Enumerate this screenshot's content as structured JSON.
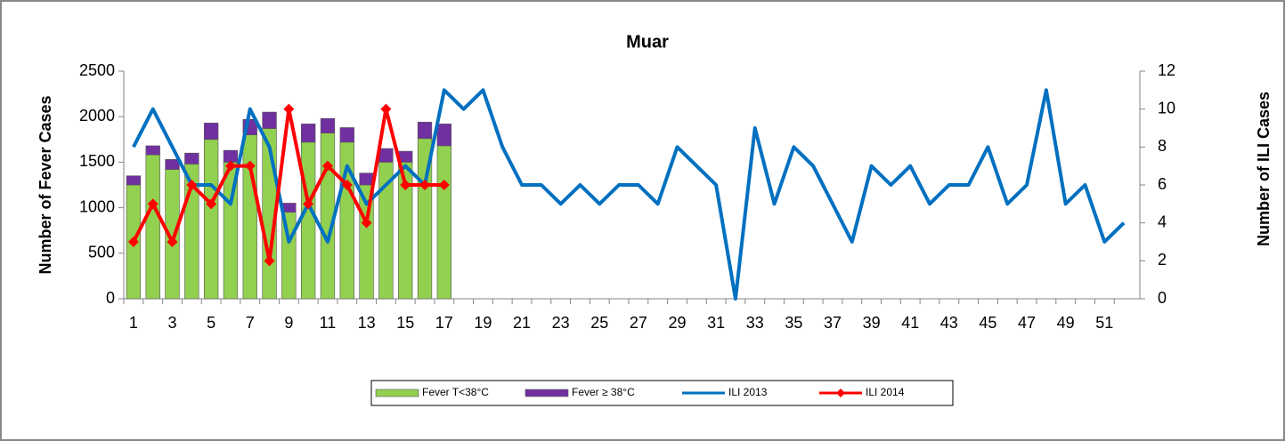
{
  "chart_data": {
    "type": "bar",
    "title": "Muar",
    "ylabel": "Number of Fever Cases",
    "y2label": "Number of ILI Cases",
    "categories": [
      1,
      null,
      3,
      null,
      5,
      null,
      7,
      null,
      9,
      null,
      11,
      null,
      13,
      null,
      15,
      null,
      17,
      null,
      19,
      null,
      21,
      null,
      23,
      null,
      25,
      null,
      27,
      null,
      29,
      null,
      31,
      null,
      33,
      null,
      35,
      null,
      37,
      null,
      39,
      null,
      41,
      null,
      43,
      null,
      45,
      null,
      47,
      null,
      49,
      null,
      51,
      null
    ],
    "ylim": [
      0,
      2500
    ],
    "yticks": [
      0,
      500,
      1000,
      1500,
      2000,
      2500
    ],
    "y2lim": [
      0,
      12
    ],
    "y2ticks": [
      0,
      2,
      4,
      6,
      8,
      10,
      12
    ],
    "legend": "bottom",
    "series": [
      {
        "name": "Fever T<38°C",
        "color": "#92d050",
        "type": "bar",
        "values": [
          1250,
          1580,
          1420,
          1480,
          1750,
          1500,
          1800,
          1870,
          950,
          1720,
          1820,
          1720,
          1250,
          1500,
          1500,
          1760,
          1680,
          null,
          null,
          null,
          null,
          null,
          null,
          null,
          null,
          null,
          null,
          null,
          null,
          null,
          null,
          null,
          null,
          null,
          null,
          null,
          null,
          null,
          null,
          null,
          null,
          null,
          null,
          null,
          null,
          null,
          null,
          null,
          null,
          null,
          null,
          null
        ]
      },
      {
        "name": "Fever ≥ 38°C",
        "color": "#7030a0",
        "type": "bar",
        "values": [
          100,
          100,
          110,
          120,
          180,
          130,
          170,
          180,
          100,
          200,
          160,
          160,
          130,
          150,
          120,
          180,
          240,
          null,
          null,
          null,
          null,
          null,
          null,
          null,
          null,
          null,
          null,
          null,
          null,
          null,
          null,
          null,
          null,
          null,
          null,
          null,
          null,
          null,
          null,
          null,
          null,
          null,
          null,
          null,
          null,
          null,
          null,
          null,
          null,
          null,
          null,
          null
        ]
      },
      {
        "name": "ILI 2013",
        "color": "#0070c0",
        "type": "line",
        "axis": "y2",
        "values": [
          8,
          10,
          8,
          6,
          6,
          5,
          10,
          8,
          3,
          5,
          3,
          7,
          5,
          6,
          7,
          6,
          11,
          10,
          11,
          8,
          6,
          6,
          5,
          6,
          5,
          6,
          6,
          5,
          8,
          7,
          6,
          0,
          9,
          5,
          8,
          7,
          5,
          3,
          7,
          6,
          7,
          5,
          6,
          6,
          8,
          5,
          6,
          11,
          5,
          6,
          3,
          4
        ]
      },
      {
        "name": "ILI 2014",
        "color": "#ff0000",
        "type": "line",
        "axis": "y2",
        "marker": "diamond",
        "values": [
          3,
          5,
          3,
          6,
          5,
          7,
          7,
          2,
          10,
          5,
          7,
          6,
          4,
          10,
          6,
          6,
          6,
          null,
          null,
          null,
          null,
          null,
          null,
          null,
          null,
          null,
          null,
          null,
          null,
          null,
          null,
          null,
          null,
          null,
          null,
          null,
          null,
          null,
          null,
          null,
          null,
          null,
          null,
          null,
          null,
          null,
          null,
          null,
          null,
          null,
          null,
          null
        ]
      }
    ]
  }
}
